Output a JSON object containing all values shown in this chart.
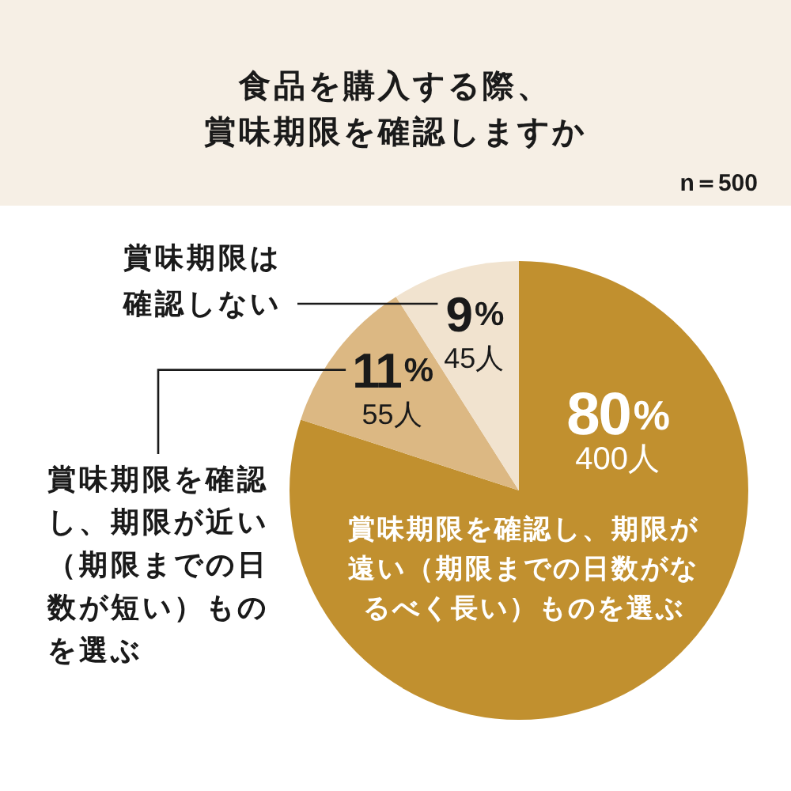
{
  "chart_data": {
    "type": "pie",
    "title": "食品を購入する際、賞味期限を確認しますか",
    "annotations": [
      "n＝500"
    ],
    "categories": [
      "賞味期限を確認し、期限が遠い（期限までの日数がなるべく長い）ものを選ぶ",
      "賞味期限を確認し、期限が近い（期限までの日数が短い）ものを選ぶ",
      "賞味期限は確認しない"
    ],
    "values": [
      80,
      11,
      9
    ],
    "colors": [
      "#c1902f",
      "#dcb883",
      "#f1e3cf"
    ],
    "value_labels": [
      "80%\n400人",
      "11%\n55人",
      "9%\n45人"
    ]
  }
}
